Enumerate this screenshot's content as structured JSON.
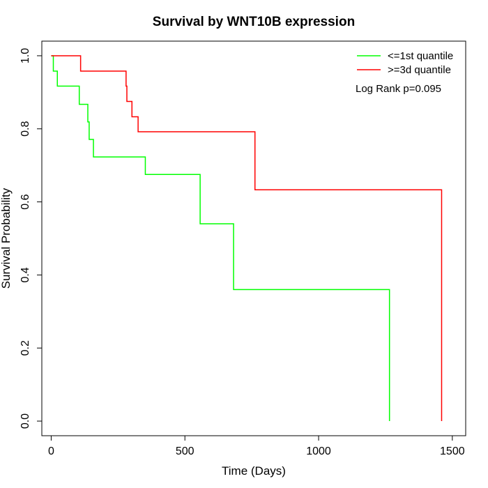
{
  "chart_data": {
    "type": "line",
    "title": "Survival by WNT10B expression",
    "xlabel": "Time (Days)",
    "ylabel": "Survival Probability",
    "xlim": [
      -35,
      1550
    ],
    "ylim": [
      -0.04,
      1.04
    ],
    "x_ticks": [
      0,
      500,
      1000,
      1500
    ],
    "x_tick_labels": [
      "0",
      "500",
      "1000",
      "1500"
    ],
    "y_ticks": [
      0.0,
      0.2,
      0.4,
      0.6,
      0.8,
      1.0
    ],
    "y_tick_labels": [
      "0.0",
      "0.2",
      "0.4",
      "0.6",
      "0.8",
      "1.0"
    ],
    "grid": false,
    "legend_position": "top-right",
    "annotation": "Log Rank p=0.095",
    "series": [
      {
        "name": "<=1st quantile",
        "color": "#00ff00",
        "step": true,
        "x": [
          0,
          8,
          23,
          105,
          137,
          142,
          158,
          352,
          557,
          682,
          1265,
          1265
        ],
        "y": [
          1.0,
          0.958,
          0.917,
          0.867,
          0.819,
          0.771,
          0.723,
          0.675,
          0.54,
          0.36,
          0.36,
          0.0
        ]
      },
      {
        "name": ">=3d quantile",
        "color": "#ff0000",
        "step": true,
        "x": [
          0,
          110,
          280,
          283,
          302,
          325,
          762,
          1460,
          1460
        ],
        "y": [
          1.0,
          0.958,
          0.917,
          0.875,
          0.833,
          0.792,
          0.633,
          0.633,
          0.0
        ]
      }
    ]
  }
}
